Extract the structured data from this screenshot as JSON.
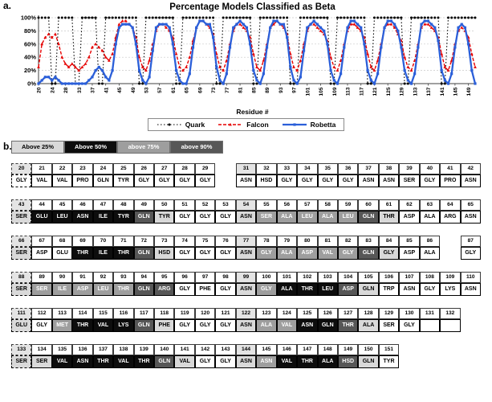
{
  "panels": {
    "a_label": "a.",
    "b_label": "b."
  },
  "chart_data": {
    "type": "line",
    "title": "Percentage Models Classified as Beta",
    "xlabel": "Residue #",
    "ylabel": "",
    "ylim": [
      0,
      100
    ],
    "grid": true,
    "legend_position": "bottom",
    "y_tick_labels": [
      "0%",
      "20%",
      "40%",
      "60%",
      "80%",
      "100%"
    ],
    "x_tick_labels": [
      20,
      24,
      28,
      33,
      37,
      41,
      45,
      49,
      53,
      57,
      61,
      65,
      69,
      73,
      77,
      81,
      85,
      89,
      93,
      97,
      101,
      105,
      109,
      113,
      117,
      121,
      125,
      129,
      133,
      137,
      141,
      145,
      149
    ],
    "x": [
      20,
      21,
      22,
      23,
      24,
      25,
      26,
      27,
      28,
      29,
      31,
      32,
      33,
      34,
      35,
      36,
      37,
      38,
      39,
      40,
      41,
      42,
      43,
      44,
      45,
      46,
      47,
      48,
      49,
      50,
      51,
      52,
      53,
      54,
      55,
      56,
      57,
      58,
      59,
      60,
      61,
      62,
      63,
      64,
      65,
      66,
      67,
      68,
      69,
      70,
      71,
      72,
      73,
      74,
      75,
      76,
      77,
      78,
      79,
      80,
      81,
      82,
      83,
      84,
      85,
      86,
      87,
      88,
      89,
      90,
      91,
      92,
      93,
      94,
      95,
      96,
      97,
      98,
      99,
      100,
      101,
      102,
      103,
      104,
      105,
      106,
      107,
      108,
      109,
      110,
      111,
      112,
      113,
      114,
      115,
      116,
      117,
      118,
      119,
      120,
      121,
      122,
      123,
      124,
      125,
      126,
      127,
      128,
      129,
      130,
      131,
      132,
      133,
      134,
      135,
      136,
      137,
      138,
      139,
      140,
      141,
      142,
      143,
      144,
      145,
      146,
      147,
      148,
      149,
      150,
      151
    ],
    "series": [
      {
        "name": "Quark",
        "color": "#000000",
        "style": "dotted",
        "marker": "circle",
        "values": [
          100,
          100,
          100,
          100,
          0,
          0,
          100,
          100,
          100,
          100,
          100,
          0,
          0,
          100,
          100,
          100,
          100,
          100,
          0,
          0,
          100,
          100,
          100,
          100,
          100,
          100,
          100,
          100,
          100,
          100,
          0,
          0,
          100,
          100,
          100,
          100,
          100,
          100,
          100,
          100,
          100,
          0,
          0,
          100,
          100,
          100,
          100,
          100,
          100,
          100,
          100,
          100,
          100,
          0,
          0,
          100,
          100,
          100,
          100,
          100,
          100,
          100,
          100,
          100,
          0,
          0,
          100,
          100,
          100,
          100,
          100,
          100,
          100,
          100,
          100,
          0,
          0,
          0,
          100,
          100,
          100,
          100,
          100,
          100,
          100,
          100,
          100,
          0,
          0,
          100,
          100,
          100,
          100,
          100,
          100,
          100,
          100,
          100,
          0,
          0,
          100,
          100,
          100,
          100,
          100,
          100,
          100,
          100,
          100,
          0,
          0,
          100,
          100,
          100,
          100,
          100,
          100,
          100,
          100,
          100,
          0,
          0,
          100,
          100,
          100,
          100,
          100,
          100,
          100,
          100,
          100
        ]
      },
      {
        "name": "Falcon",
        "color": "#e60000",
        "style": "dashed",
        "marker": "triangle",
        "values": [
          25,
          60,
          70,
          75,
          70,
          75,
          60,
          40,
          30,
          25,
          30,
          25,
          20,
          25,
          30,
          40,
          55,
          60,
          55,
          50,
          40,
          35,
          45,
          70,
          90,
          95,
          95,
          90,
          85,
          70,
          40,
          25,
          20,
          35,
          60,
          80,
          90,
          90,
          85,
          80,
          70,
          45,
          25,
          20,
          25,
          40,
          65,
          85,
          95,
          95,
          90,
          85,
          75,
          45,
          25,
          20,
          35,
          60,
          80,
          90,
          90,
          85,
          80,
          70,
          45,
          25,
          20,
          35,
          60,
          85,
          90,
          95,
          90,
          85,
          75,
          45,
          25,
          20,
          35,
          60,
          80,
          90,
          90,
          85,
          80,
          75,
          65,
          40,
          25,
          20,
          35,
          60,
          80,
          90,
          90,
          85,
          80,
          70,
          45,
          25,
          20,
          35,
          60,
          85,
          90,
          90,
          85,
          75,
          65,
          40,
          25,
          20,
          35,
          60,
          85,
          90,
          90,
          85,
          80,
          70,
          45,
          25,
          20,
          35,
          60,
          80,
          85,
          80,
          70,
          45,
          25
        ]
      },
      {
        "name": "Robetta",
        "color": "#2b5fd9",
        "style": "solid",
        "marker": "square",
        "values": [
          0,
          5,
          10,
          10,
          5,
          10,
          5,
          0,
          0,
          0,
          0,
          0,
          0,
          0,
          0,
          5,
          10,
          20,
          25,
          20,
          10,
          5,
          20,
          60,
          85,
          90,
          90,
          90,
          85,
          60,
          20,
          5,
          0,
          10,
          50,
          85,
          90,
          90,
          90,
          85,
          60,
          20,
          5,
          0,
          0,
          15,
          55,
          85,
          95,
          95,
          90,
          90,
          70,
          25,
          5,
          0,
          15,
          55,
          85,
          90,
          95,
          90,
          85,
          60,
          20,
          5,
          0,
          15,
          55,
          85,
          95,
          95,
          90,
          90,
          70,
          25,
          5,
          0,
          10,
          50,
          85,
          90,
          95,
          90,
          85,
          80,
          60,
          20,
          5,
          0,
          15,
          55,
          85,
          95,
          95,
          90,
          85,
          60,
          20,
          5,
          0,
          15,
          55,
          85,
          95,
          95,
          90,
          80,
          55,
          20,
          5,
          0,
          15,
          55,
          90,
          95,
          95,
          90,
          85,
          65,
          20,
          5,
          0,
          15,
          55,
          85,
          90,
          85,
          60,
          20,
          0
        ]
      }
    ]
  },
  "shade_legend": {
    "items": [
      {
        "label": "Above 25%",
        "shade": 1
      },
      {
        "label": "Above 50%",
        "shade": 2
      },
      {
        "label": "above 75%",
        "shade": 3
      },
      {
        "label": "above 90%",
        "shade": 4
      }
    ],
    "colors": {
      "above25": "#d9d9d9",
      "above50": "#0d0d0d",
      "above75": "#9e9e9e",
      "above90": "#575757"
    }
  },
  "grid_rows": [
    {
      "num": [
        "20",
        "21",
        "22",
        "23",
        "24",
        "25",
        "26",
        "27",
        "28",
        "29",
        "",
        "31",
        "32",
        "33",
        "34",
        "35",
        "36",
        "37",
        "38",
        "39",
        "40",
        "41",
        "42"
      ],
      "aa": [
        "GLY",
        "VAL",
        "VAL",
        "PRO",
        "GLN",
        "TYR",
        "GLY",
        "GLY",
        "GLY",
        "GLY",
        "",
        "ASN",
        "HSD",
        "GLY",
        "GLY",
        "GLY",
        "GLY",
        "ASN",
        "ASN",
        "SER",
        "GLY",
        "PRO",
        "ASN"
      ],
      "shade": [
        0,
        0,
        0,
        0,
        0,
        0,
        0,
        0,
        0,
        0,
        0,
        0,
        0,
        0,
        0,
        0,
        0,
        0,
        0,
        0,
        0,
        0,
        0
      ]
    },
    {
      "num": [
        "43",
        "44",
        "45",
        "46",
        "47",
        "48",
        "49",
        "50",
        "51",
        "52",
        "53",
        "54",
        "55",
        "56",
        "57",
        "58",
        "59",
        "60",
        "61",
        "62",
        "63",
        "64",
        "65"
      ],
      "aa": [
        "SER",
        "GLU",
        "LEU",
        "ASN",
        "ILE",
        "TYR",
        "GLN",
        "TYR",
        "GLY",
        "GLY",
        "GLY",
        "ASN",
        "SER",
        "ALA",
        "LEU",
        "ALA",
        "LEU",
        "GLN",
        "THR",
        "ASP",
        "ALA",
        "ARG",
        "ASN"
      ],
      "shade": [
        1,
        2,
        2,
        2,
        2,
        2,
        4,
        1,
        0,
        0,
        0,
        1,
        3,
        3,
        3,
        3,
        3,
        4,
        1,
        0,
        0,
        0,
        0
      ]
    },
    {
      "num": [
        "66",
        "67",
        "68",
        "69",
        "70",
        "71",
        "72",
        "73",
        "74",
        "75",
        "76",
        "77",
        "78",
        "79",
        "80",
        "81",
        "82",
        "83",
        "84",
        "85",
        "86",
        "",
        "87"
      ],
      "aa": [
        "SER",
        "ASP",
        "GLU",
        "THR",
        "ILE",
        "THR",
        "GLN",
        "HSD",
        "GLY",
        "GLY",
        "GLY",
        "ASN",
        "GLY",
        "ALA",
        "ASP",
        "VAL",
        "GLY",
        "GLN",
        "GLY",
        "ASP",
        "ALA",
        "",
        "GLY"
      ],
      "shade": [
        1,
        0,
        0,
        2,
        2,
        2,
        4,
        1,
        0,
        0,
        0,
        1,
        3,
        3,
        3,
        3,
        3,
        4,
        1,
        0,
        0,
        0,
        0
      ]
    },
    {
      "num": [
        "88",
        "89",
        "90",
        "91",
        "92",
        "93",
        "94",
        "95",
        "96",
        "97",
        "98",
        "99",
        "100",
        "101",
        "102",
        "103",
        "104",
        "105",
        "106",
        "107",
        "108",
        "109",
        "110"
      ],
      "aa": [
        "SER",
        "SER",
        "ILE",
        "ASP",
        "LEU",
        "THR",
        "GLN",
        "ARG",
        "GLY",
        "PHE",
        "GLY",
        "ASN",
        "GLY",
        "ALA",
        "THR",
        "LEU",
        "ASP",
        "GLN",
        "TRP",
        "ASN",
        "GLY",
        "LYS",
        "ASN"
      ],
      "shade": [
        1,
        3,
        3,
        3,
        3,
        3,
        4,
        4,
        0,
        0,
        0,
        1,
        3,
        2,
        2,
        2,
        4,
        1,
        0,
        0,
        0,
        0,
        0
      ]
    },
    {
      "num": [
        "111",
        "112",
        "113",
        "114",
        "115",
        "116",
        "117",
        "118",
        "119",
        "120",
        "121",
        "122",
        "123",
        "124",
        "125",
        "126",
        "127",
        "128",
        "129",
        "130",
        "131",
        "132",
        ""
      ],
      "aa": [
        "GLU",
        "GLY",
        "MET",
        "THR",
        "VAL",
        "LYS",
        "GLN",
        "PHE",
        "GLY",
        "GLY",
        "GLY",
        "ASN",
        "ALA",
        "VAL",
        "ASN",
        "GLN",
        "THR",
        "ALA",
        "SER",
        "GLY",
        "",
        "",
        ""
      ],
      "shade": [
        1,
        0,
        3,
        2,
        2,
        2,
        4,
        1,
        0,
        0,
        0,
        1,
        3,
        3,
        2,
        2,
        4,
        1,
        0,
        0,
        0,
        0,
        0
      ]
    },
    {
      "num": [
        "133",
        "134",
        "135",
        "136",
        "137",
        "138",
        "139",
        "140",
        "141",
        "142",
        "143",
        "144",
        "145",
        "146",
        "147",
        "148",
        "149",
        "150",
        "151",
        "",
        "",
        "",
        ""
      ],
      "aa": [
        "SER",
        "SER",
        "VAL",
        "ASN",
        "THR",
        "VAL",
        "THR",
        "GLN",
        "VAL",
        "GLY",
        "GLY",
        "ASN",
        "ASN",
        "VAL",
        "THR",
        "ALA",
        "HSD",
        "GLN",
        "TYR",
        "",
        "",
        "",
        ""
      ],
      "shade": [
        1,
        1,
        2,
        2,
        2,
        2,
        2,
        4,
        1,
        0,
        0,
        1,
        3,
        2,
        2,
        2,
        4,
        1,
        0,
        0,
        0,
        0,
        0
      ]
    }
  ]
}
